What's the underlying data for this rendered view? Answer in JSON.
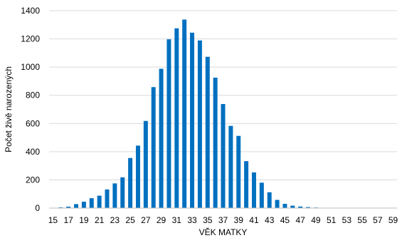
{
  "chart_data": {
    "type": "bar",
    "xlabel": "VĚK MATKY",
    "ylabel": "Počet živě narozených",
    "ylim": [
      0,
      1400
    ],
    "yticks": [
      0,
      200,
      400,
      600,
      800,
      1000,
      1200,
      1400
    ],
    "grid": true,
    "legend": "none",
    "bar_color": "#0070c0",
    "grid_color": "#d9d9d9",
    "categories": [
      "15",
      "16",
      "17",
      "18",
      "19",
      "20",
      "21",
      "22",
      "23",
      "24",
      "25",
      "26",
      "27",
      "28",
      "29",
      "30",
      "31",
      "32",
      "33",
      "34",
      "35",
      "36",
      "37",
      "38",
      "39",
      "40",
      "41",
      "42",
      "43",
      "44",
      "45",
      "46",
      "47",
      "48",
      "49",
      "50",
      "51",
      "52",
      "53",
      "54",
      "55",
      "56",
      "57",
      "58",
      "59"
    ],
    "tick_labels": [
      "15",
      "17",
      "19",
      "21",
      "23",
      "25",
      "27",
      "29",
      "31",
      "33",
      "35",
      "37",
      "39",
      "41",
      "43",
      "45",
      "47",
      "49",
      "51",
      "53",
      "55",
      "57",
      "59"
    ],
    "values": [
      1,
      5,
      10,
      28,
      45,
      70,
      88,
      132,
      175,
      218,
      355,
      443,
      618,
      858,
      988,
      1197,
      1275,
      1337,
      1244,
      1189,
      1073,
      925,
      738,
      583,
      512,
      333,
      253,
      180,
      112,
      58,
      30,
      17,
      11,
      7,
      4,
      2,
      1,
      0,
      0,
      0,
      0,
      0,
      0,
      0,
      0
    ]
  }
}
